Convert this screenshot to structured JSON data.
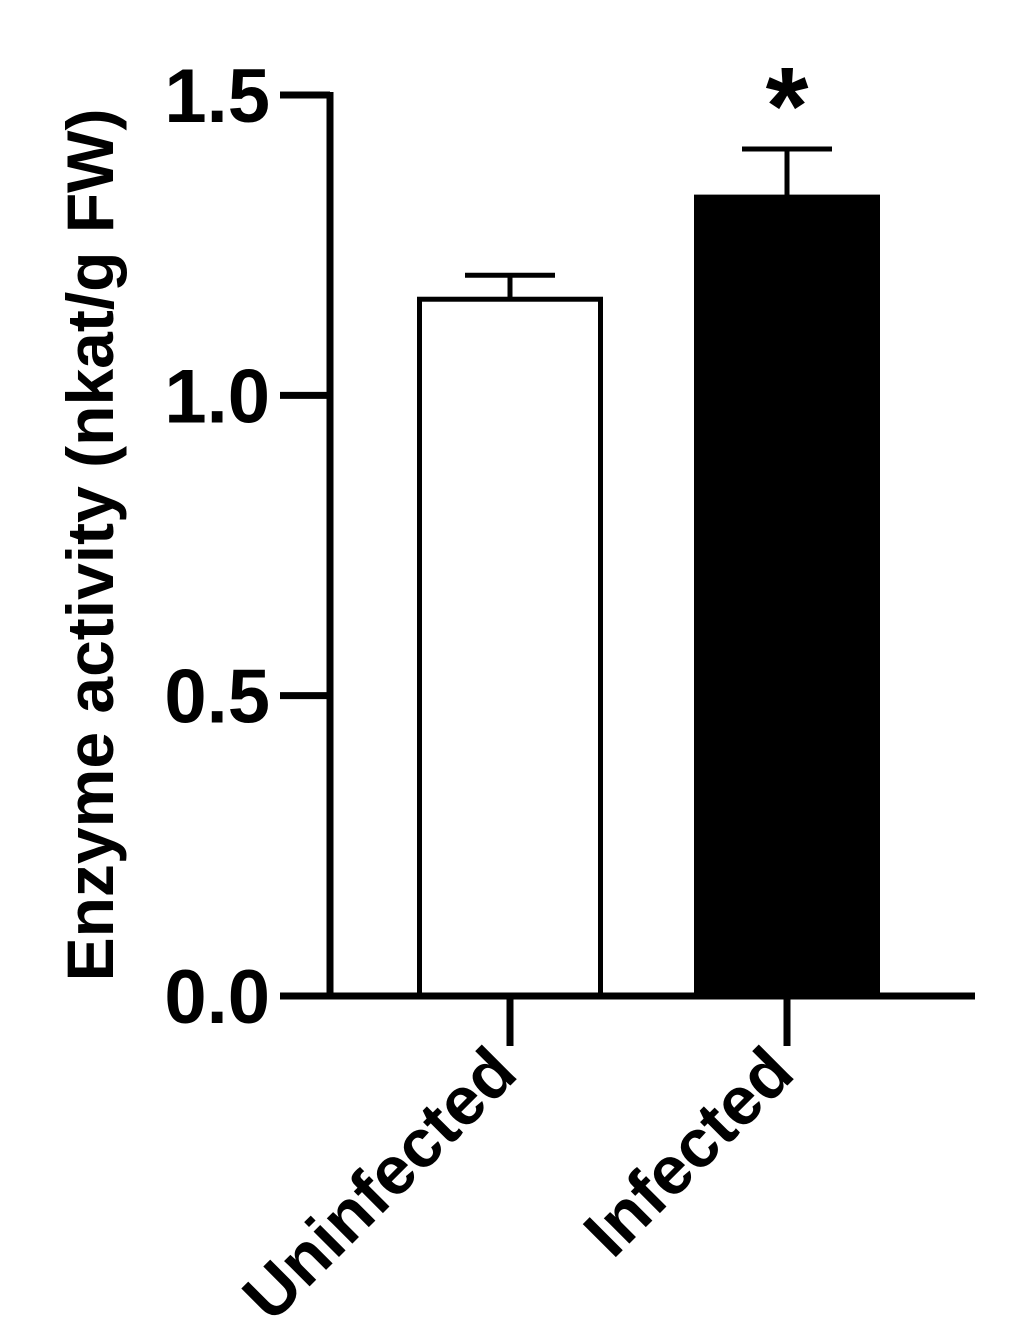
{
  "chart_data": {
    "type": "bar",
    "title": "",
    "xlabel": "",
    "ylabel": "Enzyme activity (nkat/g FW)",
    "ylim": [
      0,
      1.5
    ],
    "yticks": [
      "0.0",
      "0.5",
      "1.0",
      "1.5"
    ],
    "categories": [
      "Uninfected",
      "Infected"
    ],
    "values": [
      1.16,
      1.33
    ],
    "errors": [
      0.04,
      0.08
    ],
    "annotations": [
      "",
      "*"
    ],
    "colors": {
      "Uninfected": "#ffffff",
      "Infected": "#000000",
      "axis": "#000000"
    },
    "grid": false,
    "legend": "none"
  }
}
